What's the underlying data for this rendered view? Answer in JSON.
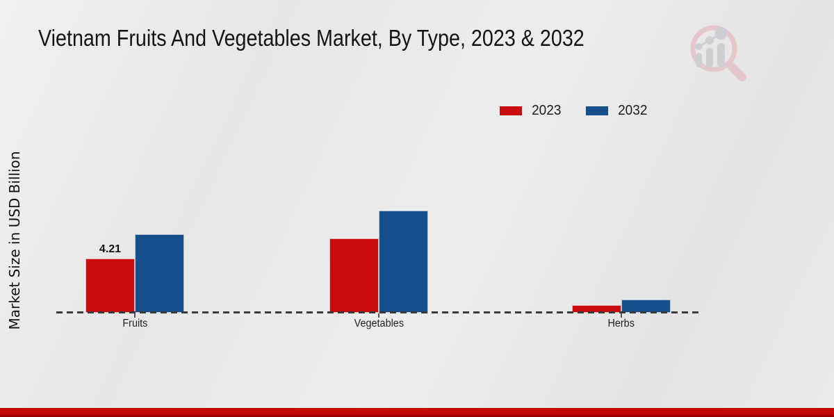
{
  "chart_data": {
    "type": "bar",
    "title": "Vietnam Fruits And Vegetables Market, By Type, 2023 & 2032",
    "xlabel": "",
    "ylabel": "Market Size in USD Billion",
    "categories": [
      "Fruits",
      "Vegetables",
      "Herbs"
    ],
    "series": [
      {
        "name": "2023",
        "color": "#c90d0e",
        "values": [
          4.21,
          5.79,
          0.59
        ]
      },
      {
        "name": "2032",
        "color": "#16508c",
        "values": [
          6.1,
          7.92,
          1.04
        ]
      }
    ],
    "data_labels": [
      {
        "series": "2023",
        "category": "Fruits",
        "text": "4.21"
      }
    ],
    "units": "USD Billion",
    "ylim": [
      0,
      8.5
    ],
    "grid": false,
    "baseline_style": "dashed",
    "legend_position": "top-right"
  },
  "icons": {
    "watermark": "magnifier-bar-chart-logo"
  },
  "colors": {
    "background": "#e9e9e9",
    "axis": "#3a3a3a",
    "footer": "#c30707",
    "watermark_pink": "#e3c6c9",
    "watermark_gray": "#cdced3"
  }
}
